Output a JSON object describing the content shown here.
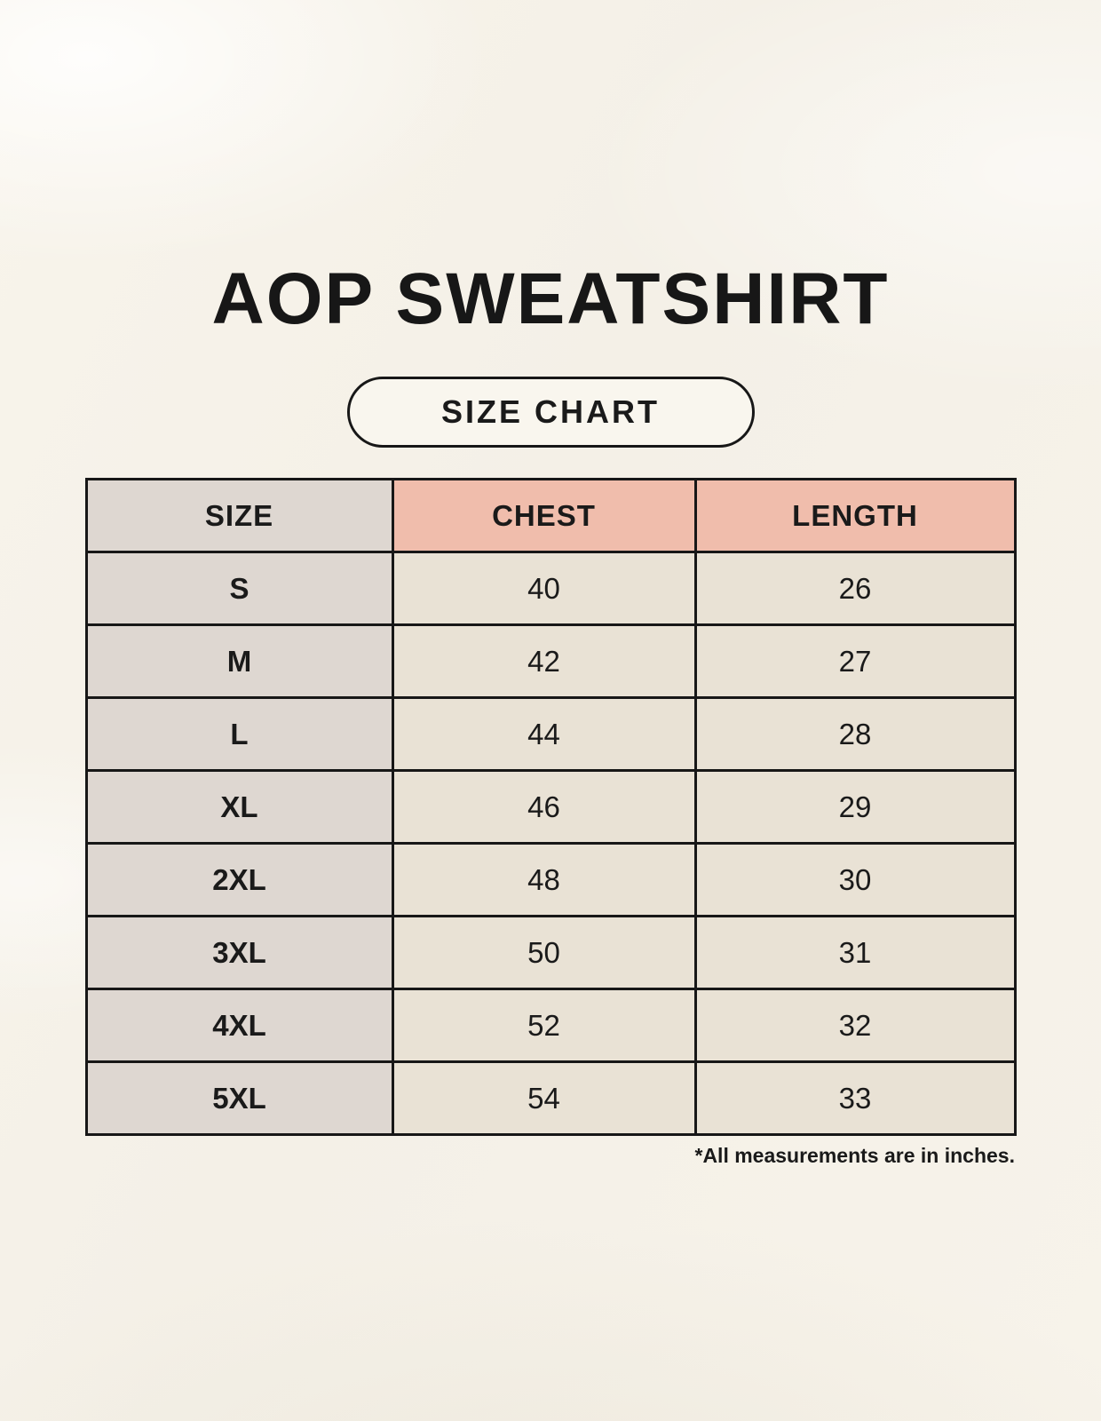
{
  "header": {
    "title": "AOP SWEATSHIRT",
    "badge": "SIZE CHART"
  },
  "colors": {
    "background": "#f6f2e9",
    "size_column": "#ded7d1",
    "header_accent": "#f0bdac",
    "data_cell": "#e9e2d5",
    "border": "#171717",
    "text": "#1a1a1a"
  },
  "chart_data": {
    "type": "table",
    "title": "AOP SWEATSHIRT",
    "columns": [
      "SIZE",
      "CHEST",
      "LENGTH"
    ],
    "rows": [
      {
        "size": "S",
        "chest": "40",
        "length": "26"
      },
      {
        "size": "M",
        "chest": "42",
        "length": "27"
      },
      {
        "size": "L",
        "chest": "44",
        "length": "28"
      },
      {
        "size": "XL",
        "chest": "46",
        "length": "29"
      },
      {
        "size": "2XL",
        "chest": "48",
        "length": "30"
      },
      {
        "size": "3XL",
        "chest": "50",
        "length": "31"
      },
      {
        "size": "4XL",
        "chest": "52",
        "length": "32"
      },
      {
        "size": "5XL",
        "chest": "54",
        "length": "33"
      }
    ],
    "footnote": "*All measurements are in inches.",
    "units": "inches"
  }
}
